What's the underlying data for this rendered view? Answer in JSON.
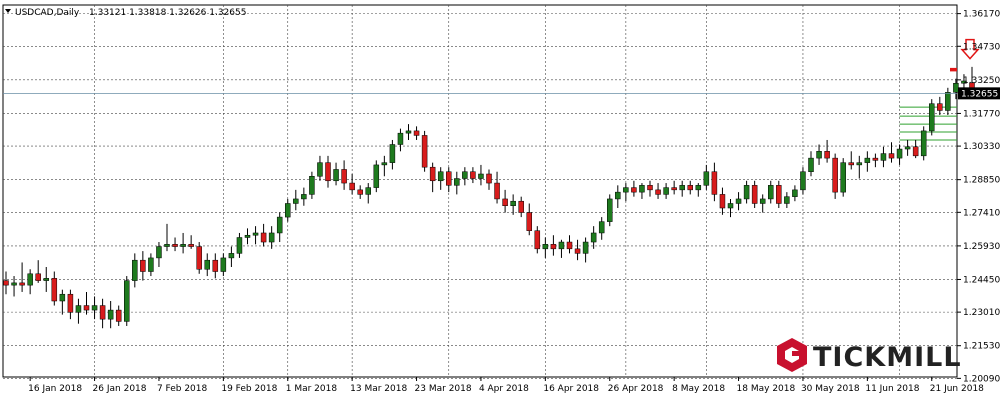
{
  "header": {
    "symbol": "USDCAD,Daily",
    "ohlc": "1.33121 1.33818 1.32626 1.32655"
  },
  "logo": {
    "text": "TICKMILL"
  },
  "colors": {
    "bull": "#1e7a1e",
    "bear": "#d81c1c",
    "grid": "#444444",
    "bidline": "#6a8fa6",
    "level": "#2fa02f",
    "resistance": "#e01515",
    "arrow": "#e01515"
  },
  "chart_data": {
    "type": "candlestick",
    "title": "",
    "xlabel": "",
    "ylabel": "",
    "ylim": [
      1.2015,
      1.3655
    ],
    "y_ticks": [
      1.3617,
      1.3473,
      1.3325,
      1.3177,
      1.3033,
      1.2885,
      1.2741,
      1.2593,
      1.2445,
      1.2301,
      1.2153,
      1.2009
    ],
    "y_tick_labels": [
      "1.36170",
      "1.34730",
      "1.33250",
      "1.31770",
      "1.30330",
      "1.28850",
      "1.27410",
      "1.25930",
      "1.24450",
      "1.23010",
      "1.21530",
      "1.20090"
    ],
    "x_labels": [
      {
        "label": "16 Jan 2018",
        "index": 3
      },
      {
        "label": "26 Jan 2018",
        "index": 11
      },
      {
        "label": "7 Feb 2018",
        "index": 19
      },
      {
        "label": "19 Feb 2018",
        "index": 27
      },
      {
        "label": "1 Mar 2018",
        "index": 35
      },
      {
        "label": "13 Mar 2018",
        "index": 43
      },
      {
        "label": "23 Mar 2018",
        "index": 51
      },
      {
        "label": "4 Apr 2018",
        "index": 59
      },
      {
        "label": "16 Apr 2018",
        "index": 67
      },
      {
        "label": "26 Apr 2018",
        "index": 75
      },
      {
        "label": "8 May 2018",
        "index": 83
      },
      {
        "label": "18 May 2018",
        "index": 91
      },
      {
        "label": "30 May 2018",
        "index": 99
      },
      {
        "label": "11 Jun 2018",
        "index": 107
      },
      {
        "label": "21 Jun 2018",
        "index": 115
      }
    ],
    "vertical_grid_indices": [
      11,
      27,
      35,
      43,
      55,
      67,
      77,
      87,
      99,
      111
    ],
    "current_price": 1.32655,
    "current_price_label": "1.32655",
    "resistance_level": 1.337,
    "support_levels": [
      1.3205,
      1.3165,
      1.313,
      1.3095,
      1.306
    ],
    "candles": [
      {
        "o": 1.244,
        "h": 1.248,
        "l": 1.238,
        "c": 1.242
      },
      {
        "o": 1.242,
        "h": 1.246,
        "l": 1.237,
        "c": 1.243
      },
      {
        "o": 1.243,
        "h": 1.252,
        "l": 1.239,
        "c": 1.242
      },
      {
        "o": 1.242,
        "h": 1.249,
        "l": 1.238,
        "c": 1.247
      },
      {
        "o": 1.247,
        "h": 1.253,
        "l": 1.243,
        "c": 1.244
      },
      {
        "o": 1.244,
        "h": 1.25,
        "l": 1.239,
        "c": 1.245
      },
      {
        "o": 1.245,
        "h": 1.248,
        "l": 1.233,
        "c": 1.235
      },
      {
        "o": 1.235,
        "h": 1.24,
        "l": 1.229,
        "c": 1.238
      },
      {
        "o": 1.238,
        "h": 1.24,
        "l": 1.227,
        "c": 1.23
      },
      {
        "o": 1.23,
        "h": 1.236,
        "l": 1.225,
        "c": 1.233
      },
      {
        "o": 1.233,
        "h": 1.239,
        "l": 1.229,
        "c": 1.231
      },
      {
        "o": 1.231,
        "h": 1.237,
        "l": 1.227,
        "c": 1.233
      },
      {
        "o": 1.233,
        "h": 1.236,
        "l": 1.223,
        "c": 1.227
      },
      {
        "o": 1.227,
        "h": 1.235,
        "l": 1.223,
        "c": 1.231
      },
      {
        "o": 1.231,
        "h": 1.233,
        "l": 1.224,
        "c": 1.226
      },
      {
        "o": 1.226,
        "h": 1.246,
        "l": 1.224,
        "c": 1.244
      },
      {
        "o": 1.244,
        "h": 1.256,
        "l": 1.241,
        "c": 1.253
      },
      {
        "o": 1.253,
        "h": 1.257,
        "l": 1.244,
        "c": 1.248
      },
      {
        "o": 1.248,
        "h": 1.256,
        "l": 1.246,
        "c": 1.254
      },
      {
        "o": 1.254,
        "h": 1.261,
        "l": 1.25,
        "c": 1.259
      },
      {
        "o": 1.259,
        "h": 1.269,
        "l": 1.257,
        "c": 1.26
      },
      {
        "o": 1.26,
        "h": 1.263,
        "l": 1.257,
        "c": 1.259
      },
      {
        "o": 1.259,
        "h": 1.265,
        "l": 1.256,
        "c": 1.26
      },
      {
        "o": 1.26,
        "h": 1.264,
        "l": 1.258,
        "c": 1.259
      },
      {
        "o": 1.259,
        "h": 1.261,
        "l": 1.247,
        "c": 1.249
      },
      {
        "o": 1.249,
        "h": 1.256,
        "l": 1.246,
        "c": 1.253
      },
      {
        "o": 1.253,
        "h": 1.256,
        "l": 1.245,
        "c": 1.248
      },
      {
        "o": 1.248,
        "h": 1.256,
        "l": 1.246,
        "c": 1.254
      },
      {
        "o": 1.254,
        "h": 1.259,
        "l": 1.25,
        "c": 1.256
      },
      {
        "o": 1.256,
        "h": 1.265,
        "l": 1.254,
        "c": 1.263
      },
      {
        "o": 1.263,
        "h": 1.267,
        "l": 1.26,
        "c": 1.264
      },
      {
        "o": 1.264,
        "h": 1.268,
        "l": 1.26,
        "c": 1.265
      },
      {
        "o": 1.265,
        "h": 1.269,
        "l": 1.259,
        "c": 1.261
      },
      {
        "o": 1.261,
        "h": 1.268,
        "l": 1.258,
        "c": 1.265
      },
      {
        "o": 1.265,
        "h": 1.274,
        "l": 1.261,
        "c": 1.272
      },
      {
        "o": 1.272,
        "h": 1.28,
        "l": 1.27,
        "c": 1.278
      },
      {
        "o": 1.278,
        "h": 1.284,
        "l": 1.275,
        "c": 1.28
      },
      {
        "o": 1.28,
        "h": 1.285,
        "l": 1.277,
        "c": 1.282
      },
      {
        "o": 1.282,
        "h": 1.292,
        "l": 1.28,
        "c": 1.29
      },
      {
        "o": 1.29,
        "h": 1.299,
        "l": 1.288,
        "c": 1.296
      },
      {
        "o": 1.296,
        "h": 1.299,
        "l": 1.285,
        "c": 1.288
      },
      {
        "o": 1.288,
        "h": 1.296,
        "l": 1.286,
        "c": 1.293
      },
      {
        "o": 1.293,
        "h": 1.297,
        "l": 1.284,
        "c": 1.287
      },
      {
        "o": 1.287,
        "h": 1.291,
        "l": 1.282,
        "c": 1.284
      },
      {
        "o": 1.284,
        "h": 1.286,
        "l": 1.28,
        "c": 1.282
      },
      {
        "o": 1.282,
        "h": 1.287,
        "l": 1.278,
        "c": 1.285
      },
      {
        "o": 1.285,
        "h": 1.297,
        "l": 1.283,
        "c": 1.295
      },
      {
        "o": 1.295,
        "h": 1.299,
        "l": 1.29,
        "c": 1.296
      },
      {
        "o": 1.296,
        "h": 1.306,
        "l": 1.293,
        "c": 1.304
      },
      {
        "o": 1.304,
        "h": 1.311,
        "l": 1.301,
        "c": 1.309
      },
      {
        "o": 1.309,
        "h": 1.313,
        "l": 1.306,
        "c": 1.31
      },
      {
        "o": 1.31,
        "h": 1.312,
        "l": 1.306,
        "c": 1.308
      },
      {
        "o": 1.308,
        "h": 1.31,
        "l": 1.292,
        "c": 1.294
      },
      {
        "o": 1.294,
        "h": 1.296,
        "l": 1.283,
        "c": 1.288
      },
      {
        "o": 1.288,
        "h": 1.294,
        "l": 1.284,
        "c": 1.292
      },
      {
        "o": 1.292,
        "h": 1.294,
        "l": 1.283,
        "c": 1.286
      },
      {
        "o": 1.286,
        "h": 1.292,
        "l": 1.282,
        "c": 1.289
      },
      {
        "o": 1.289,
        "h": 1.294,
        "l": 1.286,
        "c": 1.292
      },
      {
        "o": 1.292,
        "h": 1.294,
        "l": 1.287,
        "c": 1.289
      },
      {
        "o": 1.289,
        "h": 1.295,
        "l": 1.286,
        "c": 1.291
      },
      {
        "o": 1.291,
        "h": 1.293,
        "l": 1.284,
        "c": 1.287
      },
      {
        "o": 1.287,
        "h": 1.292,
        "l": 1.278,
        "c": 1.28
      },
      {
        "o": 1.28,
        "h": 1.284,
        "l": 1.274,
        "c": 1.277
      },
      {
        "o": 1.277,
        "h": 1.282,
        "l": 1.273,
        "c": 1.279
      },
      {
        "o": 1.279,
        "h": 1.281,
        "l": 1.272,
        "c": 1.274
      },
      {
        "o": 1.274,
        "h": 1.278,
        "l": 1.264,
        "c": 1.266
      },
      {
        "o": 1.266,
        "h": 1.268,
        "l": 1.256,
        "c": 1.258
      },
      {
        "o": 1.258,
        "h": 1.263,
        "l": 1.254,
        "c": 1.26
      },
      {
        "o": 1.26,
        "h": 1.264,
        "l": 1.255,
        "c": 1.258
      },
      {
        "o": 1.258,
        "h": 1.262,
        "l": 1.254,
        "c": 1.261
      },
      {
        "o": 1.261,
        "h": 1.264,
        "l": 1.256,
        "c": 1.258
      },
      {
        "o": 1.258,
        "h": 1.262,
        "l": 1.253,
        "c": 1.256
      },
      {
        "o": 1.256,
        "h": 1.263,
        "l": 1.252,
        "c": 1.261
      },
      {
        "o": 1.261,
        "h": 1.268,
        "l": 1.258,
        "c": 1.265
      },
      {
        "o": 1.265,
        "h": 1.272,
        "l": 1.262,
        "c": 1.27
      },
      {
        "o": 1.27,
        "h": 1.282,
        "l": 1.268,
        "c": 1.28
      },
      {
        "o": 1.28,
        "h": 1.286,
        "l": 1.276,
        "c": 1.283
      },
      {
        "o": 1.283,
        "h": 1.287,
        "l": 1.279,
        "c": 1.285
      },
      {
        "o": 1.285,
        "h": 1.288,
        "l": 1.281,
        "c": 1.283
      },
      {
        "o": 1.283,
        "h": 1.287,
        "l": 1.28,
        "c": 1.286
      },
      {
        "o": 1.286,
        "h": 1.288,
        "l": 1.281,
        "c": 1.284
      },
      {
        "o": 1.284,
        "h": 1.287,
        "l": 1.28,
        "c": 1.282
      },
      {
        "o": 1.282,
        "h": 1.287,
        "l": 1.28,
        "c": 1.285
      },
      {
        "o": 1.285,
        "h": 1.288,
        "l": 1.282,
        "c": 1.284
      },
      {
        "o": 1.284,
        "h": 1.288,
        "l": 1.281,
        "c": 1.286
      },
      {
        "o": 1.286,
        "h": 1.288,
        "l": 1.282,
        "c": 1.284
      },
      {
        "o": 1.284,
        "h": 1.287,
        "l": 1.281,
        "c": 1.286
      },
      {
        "o": 1.286,
        "h": 1.295,
        "l": 1.284,
        "c": 1.292
      },
      {
        "o": 1.292,
        "h": 1.296,
        "l": 1.279,
        "c": 1.282
      },
      {
        "o": 1.282,
        "h": 1.285,
        "l": 1.273,
        "c": 1.276
      },
      {
        "o": 1.276,
        "h": 1.28,
        "l": 1.272,
        "c": 1.278
      },
      {
        "o": 1.278,
        "h": 1.283,
        "l": 1.275,
        "c": 1.28
      },
      {
        "o": 1.28,
        "h": 1.288,
        "l": 1.278,
        "c": 1.286
      },
      {
        "o": 1.286,
        "h": 1.288,
        "l": 1.276,
        "c": 1.278
      },
      {
        "o": 1.278,
        "h": 1.282,
        "l": 1.274,
        "c": 1.28
      },
      {
        "o": 1.28,
        "h": 1.288,
        "l": 1.278,
        "c": 1.286
      },
      {
        "o": 1.286,
        "h": 1.288,
        "l": 1.276,
        "c": 1.278
      },
      {
        "o": 1.278,
        "h": 1.283,
        "l": 1.276,
        "c": 1.281
      },
      {
        "o": 1.281,
        "h": 1.286,
        "l": 1.279,
        "c": 1.284
      },
      {
        "o": 1.284,
        "h": 1.294,
        "l": 1.282,
        "c": 1.292
      },
      {
        "o": 1.292,
        "h": 1.301,
        "l": 1.29,
        "c": 1.298
      },
      {
        "o": 1.298,
        "h": 1.304,
        "l": 1.295,
        "c": 1.301
      },
      {
        "o": 1.301,
        "h": 1.306,
        "l": 1.296,
        "c": 1.298
      },
      {
        "o": 1.298,
        "h": 1.3,
        "l": 1.28,
        "c": 1.283
      },
      {
        "o": 1.283,
        "h": 1.298,
        "l": 1.281,
        "c": 1.296
      },
      {
        "o": 1.296,
        "h": 1.301,
        "l": 1.293,
        "c": 1.295
      },
      {
        "o": 1.295,
        "h": 1.299,
        "l": 1.289,
        "c": 1.296
      },
      {
        "o": 1.296,
        "h": 1.301,
        "l": 1.292,
        "c": 1.298
      },
      {
        "o": 1.298,
        "h": 1.3,
        "l": 1.294,
        "c": 1.297
      },
      {
        "o": 1.297,
        "h": 1.303,
        "l": 1.294,
        "c": 1.3
      },
      {
        "o": 1.3,
        "h": 1.305,
        "l": 1.296,
        "c": 1.298
      },
      {
        "o": 1.298,
        "h": 1.304,
        "l": 1.295,
        "c": 1.302
      },
      {
        "o": 1.302,
        "h": 1.306,
        "l": 1.299,
        "c": 1.303
      },
      {
        "o": 1.303,
        "h": 1.306,
        "l": 1.298,
        "c": 1.299
      },
      {
        "o": 1.299,
        "h": 1.312,
        "l": 1.297,
        "c": 1.31
      },
      {
        "o": 1.31,
        "h": 1.324,
        "l": 1.308,
        "c": 1.322
      },
      {
        "o": 1.322,
        "h": 1.325,
        "l": 1.317,
        "c": 1.319
      },
      {
        "o": 1.319,
        "h": 1.329,
        "l": 1.317,
        "c": 1.327
      },
      {
        "o": 1.327,
        "h": 1.333,
        "l": 1.324,
        "c": 1.331
      },
      {
        "o": 1.331,
        "h": 1.335,
        "l": 1.327,
        "c": 1.332
      },
      {
        "o": 1.3312,
        "h": 1.3382,
        "l": 1.3263,
        "c": 1.3266
      }
    ]
  }
}
